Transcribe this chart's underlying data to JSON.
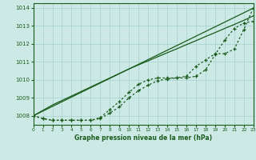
{
  "xlabel": "Graphe pression niveau de la mer (hPa)",
  "background_color": "#cce9e6",
  "grid_color": "#aad4d0",
  "line_color": "#1a5c1a",
  "xlim": [
    0,
    23
  ],
  "ylim": [
    1007.5,
    1014.25
  ],
  "yticks": [
    1008,
    1009,
    1010,
    1011,
    1012,
    1013,
    1014
  ],
  "xticks": [
    0,
    1,
    2,
    3,
    4,
    5,
    6,
    7,
    8,
    9,
    10,
    11,
    12,
    13,
    14,
    15,
    16,
    17,
    18,
    19,
    20,
    21,
    22,
    23
  ],
  "line_straight1": [
    1008.0,
    1008.3,
    1008.6,
    1008.85,
    1009.1,
    1009.35,
    1009.6,
    1009.85,
    1010.1,
    1010.35,
    1010.6,
    1010.83,
    1011.05,
    1011.28,
    1011.5,
    1011.72,
    1011.95,
    1012.17,
    1012.4,
    1012.62,
    1012.85,
    1013.07,
    1013.3,
    1013.55
  ],
  "line_straight2": [
    1008.0,
    1008.26,
    1008.52,
    1008.78,
    1009.04,
    1009.3,
    1009.56,
    1009.82,
    1010.08,
    1010.34,
    1010.6,
    1010.86,
    1011.12,
    1011.38,
    1011.64,
    1011.9,
    1012.16,
    1012.42,
    1012.68,
    1012.94,
    1013.2,
    1013.46,
    1013.72,
    1013.98
  ],
  "line_dotted1": [
    1008.0,
    1007.85,
    1007.75,
    1007.75,
    1007.75,
    1007.75,
    1007.75,
    1007.85,
    1008.15,
    1008.5,
    1009.0,
    1009.4,
    1009.7,
    1009.95,
    1010.05,
    1010.1,
    1010.1,
    1010.2,
    1010.55,
    1011.4,
    1012.2,
    1012.85,
    1013.15,
    1013.25
  ],
  "line_dotted2": [
    1008.0,
    1007.85,
    1007.75,
    1007.75,
    1007.75,
    1007.75,
    1007.75,
    1007.9,
    1008.35,
    1008.8,
    1009.3,
    1009.75,
    1010.0,
    1010.1,
    1010.1,
    1010.1,
    1010.2,
    1010.75,
    1011.1,
    1011.45,
    1011.45,
    1011.7,
    1012.8,
    1014.0
  ]
}
